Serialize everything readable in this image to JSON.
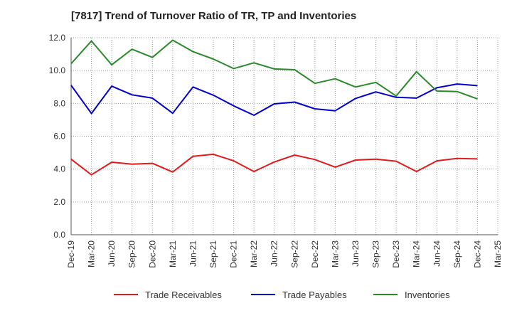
{
  "chart_data": {
    "type": "line",
    "title": "[7817]  Trend of Turnover Ratio of TR, TP and Inventories",
    "xlabel": "",
    "ylabel": "",
    "ylim": [
      0,
      12
    ],
    "yticks": [
      "0.0",
      "2.0",
      "4.0",
      "6.0",
      "8.0",
      "10.0",
      "12.0"
    ],
    "categories": [
      "Dec-19",
      "Mar-20",
      "Jun-20",
      "Sep-20",
      "Dec-20",
      "Mar-21",
      "Jun-21",
      "Sep-21",
      "Dec-21",
      "Mar-22",
      "Jun-22",
      "Sep-22",
      "Dec-22",
      "Mar-23",
      "Jun-23",
      "Sep-23",
      "Dec-23",
      "Mar-24",
      "Jun-24",
      "Sep-24",
      "Dec-24",
      "Mar-25"
    ],
    "grid": true,
    "legend_position": "bottom",
    "series": [
      {
        "name": "Trade Receivables",
        "color": "#e31a1c",
        "values": [
          4.6,
          3.65,
          4.42,
          4.3,
          4.35,
          3.82,
          4.78,
          4.9,
          4.5,
          3.85,
          4.43,
          4.85,
          4.58,
          4.12,
          4.55,
          4.6,
          4.48,
          3.85,
          4.5,
          4.65,
          4.62,
          null
        ]
      },
      {
        "name": "Trade Payables",
        "color": "#0000cc",
        "values": [
          9.1,
          7.38,
          9.05,
          8.52,
          8.32,
          7.4,
          9.0,
          8.5,
          7.85,
          7.28,
          7.97,
          8.08,
          7.67,
          7.55,
          8.3,
          8.7,
          8.37,
          8.32,
          8.95,
          9.18,
          9.08,
          null
        ]
      },
      {
        "name": "Inventories",
        "color": "#2a8a2a",
        "values": [
          10.42,
          11.8,
          10.35,
          11.3,
          10.8,
          11.85,
          11.15,
          10.7,
          10.12,
          10.47,
          10.1,
          10.05,
          9.22,
          9.5,
          9.0,
          9.28,
          8.45,
          9.93,
          8.75,
          8.72,
          8.27,
          null
        ]
      }
    ]
  }
}
